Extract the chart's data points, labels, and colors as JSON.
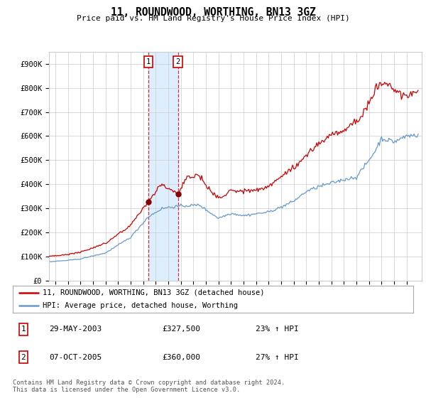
{
  "title": "11, ROUNDWOOD, WORTHING, BN13 3GZ",
  "subtitle": "Price paid vs. HM Land Registry's House Price Index (HPI)",
  "ylabel_values": [
    "£0",
    "£100K",
    "£200K",
    "£300K",
    "£400K",
    "£500K",
    "£600K",
    "£700K",
    "£800K",
    "£900K"
  ],
  "yticks": [
    0,
    100000,
    200000,
    300000,
    400000,
    500000,
    600000,
    700000,
    800000,
    900000
  ],
  "ylim": [
    0,
    950000
  ],
  "xlim_start": 1995.5,
  "xlim_end": 2025.2,
  "transaction1_x": 2003.41,
  "transaction1_y": 327500,
  "transaction2_x": 2005.77,
  "transaction2_y": 360000,
  "legend_line1": "11, ROUNDWOOD, WORTHING, BN13 3GZ (detached house)",
  "legend_line2": "HPI: Average price, detached house, Worthing",
  "table_row1": [
    "1",
    "29-MAY-2003",
    "£327,500",
    "23% ↑ HPI"
  ],
  "table_row2": [
    "2",
    "07-OCT-2005",
    "£360,000",
    "27% ↑ HPI"
  ],
  "footer": "Contains HM Land Registry data © Crown copyright and database right 2024.\nThis data is licensed under the Open Government Licence v3.0.",
  "line_color_red": "#cc0000",
  "line_color_blue": "#6699cc",
  "shade_color": "#ddeeff",
  "grid_color": "#cccccc",
  "bg_color": "#ffffff",
  "marker_color": "#880000"
}
